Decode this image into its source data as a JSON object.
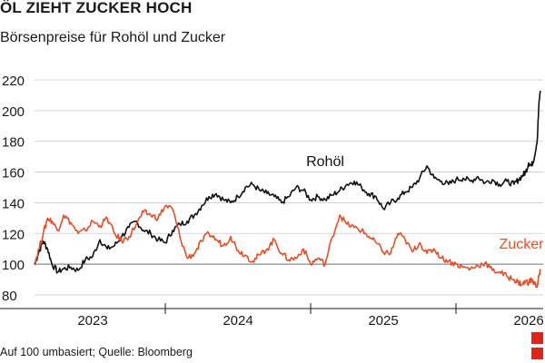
{
  "header": {
    "title": "ÖL ZIEHT ZUCKER HOCH",
    "subtitle": "Börsenpreise für Rohöl und Zucker"
  },
  "footer": {
    "source": "Auf 100 umbasiert; Quelle: Bloomberg"
  },
  "colors": {
    "rohoel": "#111111",
    "zucker": "#e2502a",
    "accent": "#e2231a",
    "grid": "#c9c9c9",
    "baseline": "#888888"
  },
  "chart_data": {
    "type": "line",
    "xlabel": "",
    "ylabel": "",
    "x_range": [
      2022.6,
      2026.1
    ],
    "ylim": [
      80,
      225
    ],
    "grid": true,
    "y_ticks": [
      80,
      100,
      120,
      140,
      160,
      180,
      200,
      220
    ],
    "x_tick_labels": [
      {
        "label": "2023",
        "x": 2023.0
      },
      {
        "label": "2024",
        "x": 2024.0
      },
      {
        "label": "2025",
        "x": 2025.0
      },
      {
        "label": "2026",
        "x": 2026.0
      }
    ],
    "x_boundaries": [
      2023.5,
      2024.5,
      2025.5
    ],
    "reference_line": 100,
    "series": [
      {
        "name": "Rohöl",
        "color": "#111111",
        "label_x": 2024.6,
        "label_y": 164,
        "x": [
          2022.6,
          2022.63,
          2022.66,
          2022.69,
          2022.72,
          2022.76,
          2022.8,
          2022.85,
          2022.9,
          2022.95,
          2023.0,
          2023.05,
          2023.1,
          2023.15,
          2023.2,
          2023.25,
          2023.3,
          2023.35,
          2023.4,
          2023.45,
          2023.5,
          2023.55,
          2023.6,
          2023.65,
          2023.7,
          2023.75,
          2023.8,
          2023.85,
          2023.9,
          2023.95,
          2024.0,
          2024.05,
          2024.1,
          2024.15,
          2024.2,
          2024.25,
          2024.3,
          2024.35,
          2024.4,
          2024.45,
          2024.5,
          2024.55,
          2024.6,
          2024.65,
          2024.7,
          2024.75,
          2024.8,
          2024.85,
          2024.9,
          2024.95,
          2025.0,
          2025.05,
          2025.1,
          2025.15,
          2025.2,
          2025.25,
          2025.3,
          2025.35,
          2025.4,
          2025.45,
          2025.5,
          2025.55,
          2025.6,
          2025.65,
          2025.7,
          2025.75,
          2025.8,
          2025.85,
          2025.9,
          2025.93,
          2025.96,
          2025.98,
          2026.0,
          2026.02,
          2026.04,
          2026.06,
          2026.07,
          2026.08
        ],
        "values": [
          100,
          108,
          115,
          110,
          100,
          95,
          97,
          98,
          96,
          103,
          105,
          116,
          110,
          112,
          118,
          124,
          128,
          122,
          120,
          116,
          114,
          122,
          126,
          128,
          132,
          138,
          144,
          146,
          142,
          140,
          144,
          150,
          152,
          148,
          146,
          144,
          140,
          144,
          150,
          148,
          142,
          144,
          142,
          145,
          148,
          152,
          154,
          150,
          146,
          144,
          136,
          140,
          143,
          147,
          150,
          156,
          164,
          156,
          154,
          152,
          155,
          156,
          154,
          157,
          153,
          155,
          152,
          154,
          152,
          155,
          158,
          160,
          166,
          164,
          170,
          182,
          203,
          213
        ]
      },
      {
        "name": "Zucker",
        "color": "#e2502a",
        "label_x": 2025.95,
        "label_y": 110,
        "x": [
          2022.6,
          2022.63,
          2022.66,
          2022.69,
          2022.72,
          2022.76,
          2022.8,
          2022.85,
          2022.9,
          2022.95,
          2023.0,
          2023.05,
          2023.1,
          2023.15,
          2023.2,
          2023.25,
          2023.3,
          2023.35,
          2023.4,
          2023.45,
          2023.5,
          2023.55,
          2023.6,
          2023.65,
          2023.7,
          2023.75,
          2023.8,
          2023.85,
          2023.9,
          2023.95,
          2024.0,
          2024.05,
          2024.1,
          2024.15,
          2024.2,
          2024.25,
          2024.3,
          2024.35,
          2024.4,
          2024.45,
          2024.5,
          2024.55,
          2024.6,
          2024.65,
          2024.7,
          2024.75,
          2024.8,
          2024.85,
          2024.9,
          2024.95,
          2025.0,
          2025.05,
          2025.1,
          2025.15,
          2025.2,
          2025.25,
          2025.3,
          2025.35,
          2025.4,
          2025.45,
          2025.5,
          2025.55,
          2025.6,
          2025.65,
          2025.7,
          2025.75,
          2025.8,
          2025.85,
          2025.9,
          2025.93,
          2025.96,
          2025.98,
          2026.0,
          2026.02,
          2026.04,
          2026.06,
          2026.07,
          2026.08
        ],
        "values": [
          100,
          110,
          120,
          130,
          128,
          122,
          132,
          127,
          120,
          122,
          128,
          125,
          130,
          120,
          115,
          118,
          126,
          134,
          132,
          130,
          138,
          136,
          118,
          104,
          107,
          115,
          120,
          116,
          112,
          118,
          109,
          106,
          102,
          106,
          110,
          116,
          107,
          103,
          104,
          110,
          100,
          104,
          100,
          118,
          132,
          126,
          124,
          122,
          118,
          114,
          108,
          107,
          120,
          116,
          108,
          114,
          107,
          110,
          104,
          102,
          100,
          98,
          97,
          99,
          101,
          96,
          95,
          92,
          90,
          88,
          87,
          89,
          88,
          90,
          87,
          86,
          92,
          95
        ]
      }
    ]
  }
}
